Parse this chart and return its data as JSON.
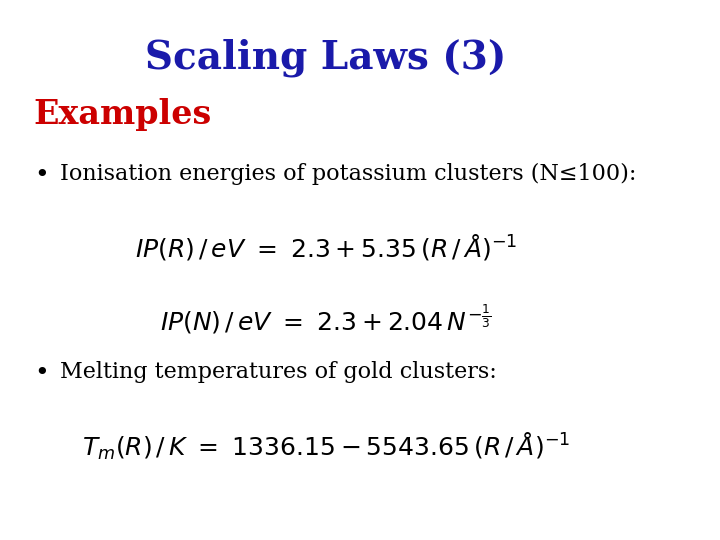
{
  "title": "Scaling Laws (3)",
  "title_color": "#1a1aaa",
  "title_fontsize": 28,
  "subtitle": "Examples",
  "subtitle_color": "#cc0000",
  "subtitle_fontsize": 24,
  "background_color": "#ffffff",
  "bullet1_text": "Ionisation energies of potassium clusters (N≤100):",
  "bullet2_text": "Melting temperatures of gold clusters:",
  "bullet_fontsize": 16,
  "bullet_color": "#000000",
  "eq1": "IP(R)\\,/\\, eV = 2.3 + 5.35\\,(R\\,/\\,\\AA)^{-1}",
  "eq2": "IP(N)\\,/\\, eV = 2.3 + 2.04\\, N^{-1/3}",
  "eq3": "T_m(R)\\,/\\, K = 1336.15 - 5543.65\\,(R\\,/\\,\\AA)^{-1}",
  "eq_fontsize": 18,
  "eq_color": "#000000"
}
